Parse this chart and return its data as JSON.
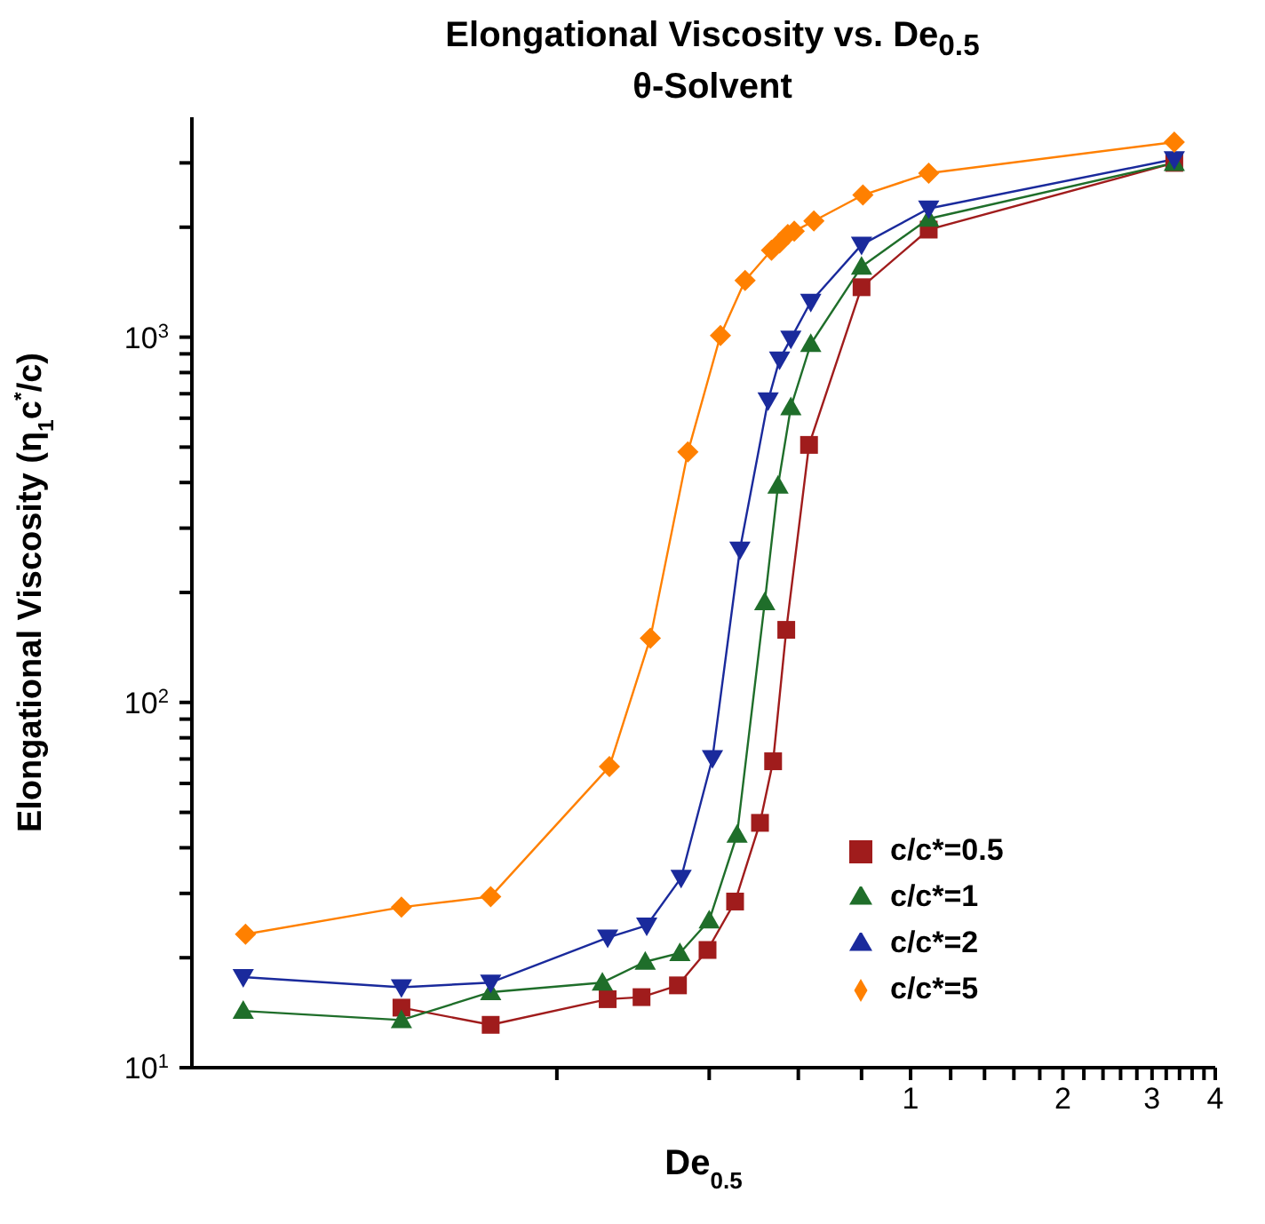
{
  "chart_data": {
    "type": "line",
    "title": "Elongational Viscosity vs. De$_{0.5}$",
    "subtitle": "θ-Solvent",
    "xlabel": "De$_{0.5}$",
    "ylabel": "Elongational Viscosity (η$_{1}$c$^{*}$/c)",
    "log": "xy",
    "grid": false,
    "legend": "right",
    "xlim": [
      0.038,
      4
    ],
    "ylim": [
      10,
      4000
    ],
    "xticks": [
      {
        "value": 0.2,
        "label": null
      },
      {
        "value": 0.4,
        "label": null
      },
      {
        "value": 0.6,
        "label": null
      },
      {
        "value": 0.8,
        "label": null
      },
      1,
      {
        "value": 1.2,
        "label": null
      },
      {
        "value": 1.4,
        "label": null
      },
      {
        "value": 1.6,
        "label": null
      },
      {
        "value": 1.8,
        "label": null
      },
      2,
      {
        "value": 2.2,
        "label": null
      },
      {
        "value": 2.4,
        "label": null
      },
      {
        "value": 2.6,
        "label": null
      },
      {
        "value": 2.8,
        "label": null
      },
      3,
      {
        "value": 3.2,
        "label": null
      },
      {
        "value": 3.4,
        "label": null
      },
      {
        "value": 3.6,
        "label": null
      },
      {
        "value": 3.8,
        "label": null
      },
      4
    ],
    "yticks": [
      {
        "value": 10,
        "label": "10$^{1}$"
      },
      {
        "value": 20,
        "label": null
      },
      {
        "value": 30,
        "label": null
      },
      {
        "value": 40,
        "label": null
      },
      {
        "value": 50,
        "label": null
      },
      {
        "value": 60,
        "label": null
      },
      {
        "value": 70,
        "label": null
      },
      {
        "value": 80,
        "label": null
      },
      {
        "value": 90,
        "label": null
      },
      {
        "value": 100,
        "label": "10$^{2}$"
      },
      {
        "value": 200,
        "label": null
      },
      {
        "value": 300,
        "label": null
      },
      {
        "value": 400,
        "label": null
      },
      {
        "value": 500,
        "label": null
      },
      {
        "value": 600,
        "label": null
      },
      {
        "value": 700,
        "label": null
      },
      {
        "value": 800,
        "label": null
      },
      {
        "value": 900,
        "label": null
      },
      {
        "value": 1000,
        "label": "10$^{3}$"
      },
      {
        "value": 2000,
        "label": null
      },
      {
        "value": 3000,
        "label": null
      }
    ],
    "series": [
      {
        "name": "c/c*=0.5",
        "color": "#a01c1c",
        "marker": "square",
        "x": [
          0.0986,
          0.148,
          0.252,
          0.294,
          0.347,
          0.397,
          0.45,
          0.504,
          0.535,
          0.568,
          0.63,
          0.8,
          1.086,
          3.32
        ],
        "values": [
          14.6,
          13.1,
          15.4,
          15.6,
          16.8,
          21.0,
          28.5,
          46.8,
          69,
          158,
          507,
          1370,
          1970,
          3000
        ]
      },
      {
        "name": "c/c*=1",
        "color": "#1f6e2a",
        "marker": "triangle",
        "x": [
          0.048,
          0.0986,
          0.148,
          0.246,
          0.299,
          0.35,
          0.4,
          0.454,
          0.515,
          0.547,
          0.58,
          0.635,
          0.8,
          1.086,
          3.32
        ],
        "values": [
          14.3,
          13.5,
          16.1,
          17.1,
          19.5,
          20.6,
          25.3,
          43.4,
          188,
          392,
          643,
          958,
          1560,
          2110,
          3000
        ]
      },
      {
        "name": "c/c*=2",
        "color": "#1a2a9c",
        "marker": "triangle-down",
        "x": [
          0.048,
          0.0986,
          0.148,
          0.252,
          0.301,
          0.352,
          0.406,
          0.46,
          0.523,
          0.551,
          0.58,
          0.635,
          0.8,
          1.086,
          3.32
        ],
        "values": [
          17.7,
          16.6,
          17.1,
          22.7,
          24.5,
          33.1,
          70.4,
          262,
          671,
          869,
          990,
          1250,
          1790,
          2250,
          3070
        ]
      },
      {
        "name": "c/c*=5",
        "color": "#ff8000",
        "marker": "diamond",
        "x": [
          0.0485,
          0.0986,
          0.148,
          0.254,
          0.306,
          0.363,
          0.421,
          0.471,
          0.531,
          0.551,
          0.572,
          0.589,
          0.644,
          0.805,
          1.086,
          3.32
        ],
        "values": [
          23.2,
          27.5,
          29.4,
          66.7,
          150,
          485,
          1010,
          1430,
          1730,
          1810,
          1910,
          1950,
          2080,
          2450,
          2810,
          3420
        ]
      }
    ]
  }
}
